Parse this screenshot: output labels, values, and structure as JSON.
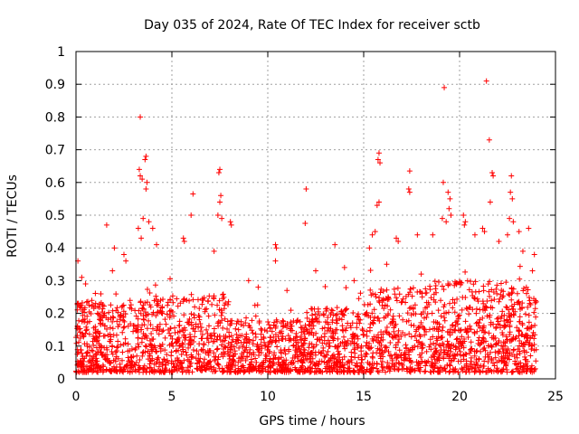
{
  "chart_data": {
    "type": "scatter",
    "title": "Day 035 of 2024, Rate Of TEC Index for receiver sctb",
    "xlabel": "GPS time / hours",
    "ylabel": "ROTI / TECUs",
    "xlim": [
      0,
      25
    ],
    "ylim": [
      0,
      1
    ],
    "xticks": [
      0,
      5,
      10,
      15,
      20,
      25
    ],
    "yticks": [
      0,
      0.1,
      0.2,
      0.3,
      0.4,
      0.5,
      0.6,
      0.7,
      0.8,
      0.9,
      1
    ],
    "xtick_labels": [
      "0",
      "5",
      "10",
      "15",
      "20",
      "25"
    ],
    "ytick_labels": [
      "0",
      "0.1",
      "0.2",
      "0.3",
      "0.4",
      "0.5",
      "0.6",
      "0.7",
      "0.8",
      "0.9",
      "1"
    ],
    "grid": true,
    "marker": "+",
    "color": "#ff0000",
    "series": [
      {
        "values": [
          [
            3.35,
            0.8
          ],
          [
            3.3,
            0.64
          ],
          [
            3.35,
            0.62
          ],
          [
            3.45,
            0.61
          ],
          [
            3.65,
            0.68
          ],
          [
            3.6,
            0.67
          ],
          [
            3.7,
            0.6
          ],
          [
            3.65,
            0.58
          ],
          [
            3.25,
            0.46
          ],
          [
            3.5,
            0.49
          ],
          [
            3.8,
            0.48
          ],
          [
            3.4,
            0.43
          ],
          [
            1.6,
            0.47
          ],
          [
            4.0,
            0.46
          ],
          [
            4.2,
            0.41
          ],
          [
            6.1,
            0.565
          ],
          [
            6.0,
            0.5
          ],
          [
            5.6,
            0.43
          ],
          [
            5.65,
            0.42
          ],
          [
            7.5,
            0.64
          ],
          [
            7.45,
            0.63
          ],
          [
            7.55,
            0.56
          ],
          [
            7.5,
            0.54
          ],
          [
            7.4,
            0.5
          ],
          [
            7.6,
            0.49
          ],
          [
            8.1,
            0.47
          ],
          [
            8.05,
            0.48
          ],
          [
            7.2,
            0.39
          ],
          [
            10.4,
            0.41
          ],
          [
            10.45,
            0.4
          ],
          [
            10.4,
            0.36
          ],
          [
            12.0,
            0.58
          ],
          [
            11.95,
            0.475
          ],
          [
            13.5,
            0.41
          ],
          [
            15.8,
            0.69
          ],
          [
            15.75,
            0.67
          ],
          [
            15.85,
            0.66
          ],
          [
            15.8,
            0.54
          ],
          [
            15.7,
            0.53
          ],
          [
            15.45,
            0.44
          ],
          [
            15.3,
            0.4
          ],
          [
            15.6,
            0.45
          ],
          [
            16.7,
            0.43
          ],
          [
            16.8,
            0.42
          ],
          [
            17.4,
            0.635
          ],
          [
            17.35,
            0.58
          ],
          [
            17.4,
            0.57
          ],
          [
            17.8,
            0.44
          ],
          [
            19.2,
            0.89
          ],
          [
            19.15,
            0.6
          ],
          [
            19.4,
            0.57
          ],
          [
            19.5,
            0.55
          ],
          [
            19.45,
            0.52
          ],
          [
            19.55,
            0.5
          ],
          [
            19.1,
            0.49
          ],
          [
            19.3,
            0.48
          ],
          [
            18.6,
            0.44
          ],
          [
            20.2,
            0.5
          ],
          [
            20.3,
            0.48
          ],
          [
            20.25,
            0.47
          ],
          [
            21.4,
            0.91
          ],
          [
            21.55,
            0.73
          ],
          [
            21.7,
            0.63
          ],
          [
            21.75,
            0.62
          ],
          [
            21.6,
            0.54
          ],
          [
            21.2,
            0.46
          ],
          [
            21.3,
            0.45
          ],
          [
            20.8,
            0.44
          ],
          [
            22.05,
            0.42
          ],
          [
            22.7,
            0.62
          ],
          [
            22.65,
            0.57
          ],
          [
            22.75,
            0.55
          ],
          [
            22.6,
            0.49
          ],
          [
            22.8,
            0.48
          ],
          [
            22.5,
            0.44
          ],
          [
            23.1,
            0.45
          ],
          [
            23.6,
            0.46
          ],
          [
            23.3,
            0.39
          ],
          [
            0.1,
            0.36
          ],
          [
            0.3,
            0.31
          ],
          [
            0.5,
            0.29
          ],
          [
            2.5,
            0.38
          ],
          [
            2.6,
            0.36
          ],
          [
            2.0,
            0.4
          ],
          [
            1.9,
            0.33
          ],
          [
            9.0,
            0.3
          ],
          [
            9.5,
            0.28
          ],
          [
            11.0,
            0.27
          ],
          [
            12.5,
            0.33
          ],
          [
            14.0,
            0.34
          ],
          [
            14.5,
            0.3
          ],
          [
            16.2,
            0.35
          ],
          [
            18.0,
            0.32
          ],
          [
            23.9,
            0.38
          ],
          [
            23.8,
            0.33
          ]
        ]
      }
    ]
  }
}
